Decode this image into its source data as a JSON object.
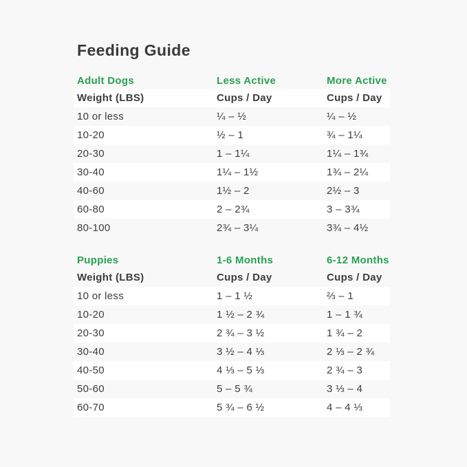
{
  "page": {
    "title": "Feeding Guide"
  },
  "colors": {
    "accent_green": "#28a052",
    "text": "#3c3c3c",
    "row_white": "#ffffff",
    "background": "#f8f8f8"
  },
  "adult": {
    "section": {
      "col1": "Adult Dogs",
      "col2": "Less Active",
      "col3": "More Active"
    },
    "columns": {
      "col1": "Weight (LBS)",
      "col2": "Cups / Day",
      "col3": "Cups / Day"
    },
    "rows": [
      {
        "weight": "10 or less",
        "less_active": "¼ – ½",
        "more_active": "¼ – ½"
      },
      {
        "weight": "10-20",
        "less_active": "½ – 1",
        "more_active": "¾ – 1¼"
      },
      {
        "weight": "20-30",
        "less_active": "1 – 1¼",
        "more_active": "1¼ – 1¾"
      },
      {
        "weight": "30-40",
        "less_active": "1¼ – 1½",
        "more_active": "1¾ – 2¼"
      },
      {
        "weight": "40-60",
        "less_active": "1½ – 2",
        "more_active": "2½ – 3"
      },
      {
        "weight": "60-80",
        "less_active": "2 – 2¾",
        "more_active": "3 – 3¾"
      },
      {
        "weight": "80-100",
        "less_active": "2¾ – 3¼",
        "more_active": "3¾ – 4½"
      }
    ]
  },
  "puppies": {
    "section": {
      "col1": "Puppies",
      "col2": "1-6 Months",
      "col3": "6-12 Months"
    },
    "columns": {
      "col1": "Weight (LBS)",
      "col2": "Cups / Day",
      "col3": "Cups / Day"
    },
    "rows": [
      {
        "weight": "10 or less",
        "months_1_6": "1 – 1 ½",
        "months_6_12": "⅔ – 1"
      },
      {
        "weight": "10-20",
        "months_1_6": "1 ½ – 2 ¾",
        "months_6_12": "1 – 1 ¾"
      },
      {
        "weight": "20-30",
        "months_1_6": "2 ¾ – 3 ½",
        "months_6_12": "1 ¾ – 2"
      },
      {
        "weight": "30-40",
        "months_1_6": "3 ½ – 4 ⅓",
        "months_6_12": "2 ⅓ – 2 ¾"
      },
      {
        "weight": "40-50",
        "months_1_6": "4 ⅓ – 5 ⅓",
        "months_6_12": "2 ¾ – 3"
      },
      {
        "weight": "50-60",
        "months_1_6": "5 – 5 ¾",
        "months_6_12": "3 ⅓ – 4"
      },
      {
        "weight": "60-70",
        "months_1_6": "5 ¾ – 6 ½",
        "months_6_12": "4 – 4 ⅓"
      }
    ]
  }
}
